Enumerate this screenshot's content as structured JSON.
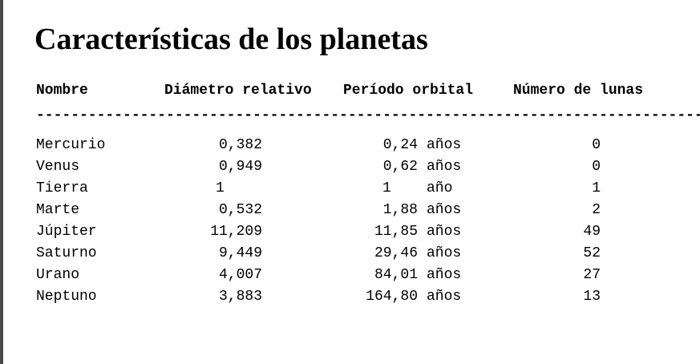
{
  "title": "Características de los planetas",
  "headers": {
    "name": "Nombre",
    "diameter": "Diámetro relativo",
    "period": "Período orbital",
    "moons": "Número de lunas"
  },
  "divider": "------------------------------------------------------------------------------",
  "rows": [
    {
      "name": "Mercurio",
      "diameter": "0,382",
      "period_value": "0,24",
      "period_unit": "años",
      "moons": "0"
    },
    {
      "name": "Venus",
      "diameter": "0,949",
      "period_value": "0,62",
      "period_unit": "años",
      "moons": "0"
    },
    {
      "name": "Tierra",
      "diameter": "1",
      "period_value": "1",
      "period_unit": "año",
      "moons": "1"
    },
    {
      "name": "Marte",
      "diameter": "0,532",
      "period_value": "1,88",
      "period_unit": "años",
      "moons": "2"
    },
    {
      "name": "Júpiter",
      "diameter": "11,209",
      "period_value": "11,85",
      "period_unit": "años",
      "moons": "49"
    },
    {
      "name": "Saturno",
      "diameter": "9,449",
      "period_value": "29,46",
      "period_unit": "años",
      "moons": "52"
    },
    {
      "name": "Urano",
      "diameter": "4,007",
      "period_value": "84,01",
      "period_unit": "años",
      "moons": "27"
    },
    {
      "name": "Neptuno",
      "diameter": "3,883",
      "period_value": "164,80",
      "period_unit": "años",
      "moons": "13"
    }
  ]
}
